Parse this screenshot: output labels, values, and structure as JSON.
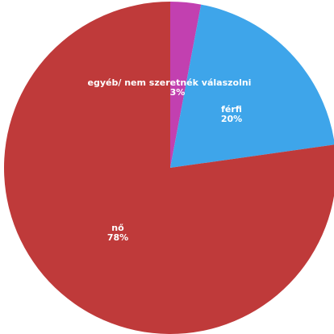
{
  "chart_data": {
    "type": "pie",
    "slices": [
      {
        "label": "nő",
        "value": 78,
        "value_label": "78%",
        "color": "#bf3a3a"
      },
      {
        "label": "férfi",
        "value": 20,
        "value_label": "20%",
        "color": "#3ea5ea"
      },
      {
        "label": "egyéb/ nem szeretnék válaszolni",
        "value": 3,
        "value_label": "3%",
        "color": "#c240b0"
      }
    ]
  }
}
